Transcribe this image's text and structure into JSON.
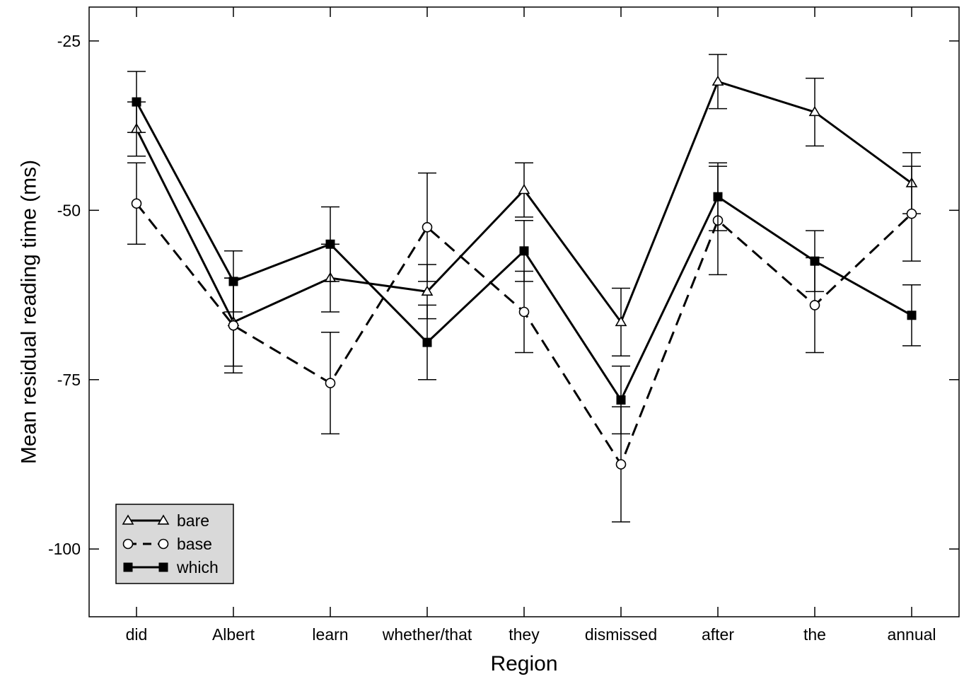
{
  "chart_data": {
    "type": "line",
    "xlabel": "Region",
    "ylabel": "Mean residual reading time (ms)",
    "categories": [
      "did",
      "Albert",
      "learn",
      "whether/that",
      "they",
      "dismissed",
      "after",
      "the",
      "annual"
    ],
    "ylim": [
      -110,
      -20
    ],
    "yticks": [
      -25,
      -50,
      -75,
      -100
    ],
    "grid": false,
    "legend_position": "bottom-left",
    "series": [
      {
        "name": "bare",
        "line_style": "solid",
        "marker": "open-triangle",
        "values": [
          -38,
          -66.5,
          -60,
          -62,
          -47,
          -66.5,
          -31,
          -35.5,
          -46
        ],
        "error": [
          4,
          6.5,
          5,
          4,
          4,
          5,
          4,
          5,
          4.5
        ]
      },
      {
        "name": "base",
        "line_style": "dashed",
        "marker": "open-circle",
        "values": [
          -49,
          -67,
          -75.5,
          -52.5,
          -65,
          -87.5,
          -51.5,
          -64,
          -50.5
        ],
        "error": [
          6,
          7,
          7.5,
          8,
          6,
          8.5,
          8,
          7,
          7
        ]
      },
      {
        "name": "which",
        "line_style": "solid",
        "marker": "filled-square",
        "values": [
          -34,
          -60.5,
          -55,
          -69.5,
          -56,
          -78,
          -48,
          -57.5,
          -65.5
        ],
        "error": [
          4.5,
          4.5,
          5.5,
          5.5,
          4.5,
          5,
          5,
          4.5,
          4.5
        ]
      }
    ]
  }
}
